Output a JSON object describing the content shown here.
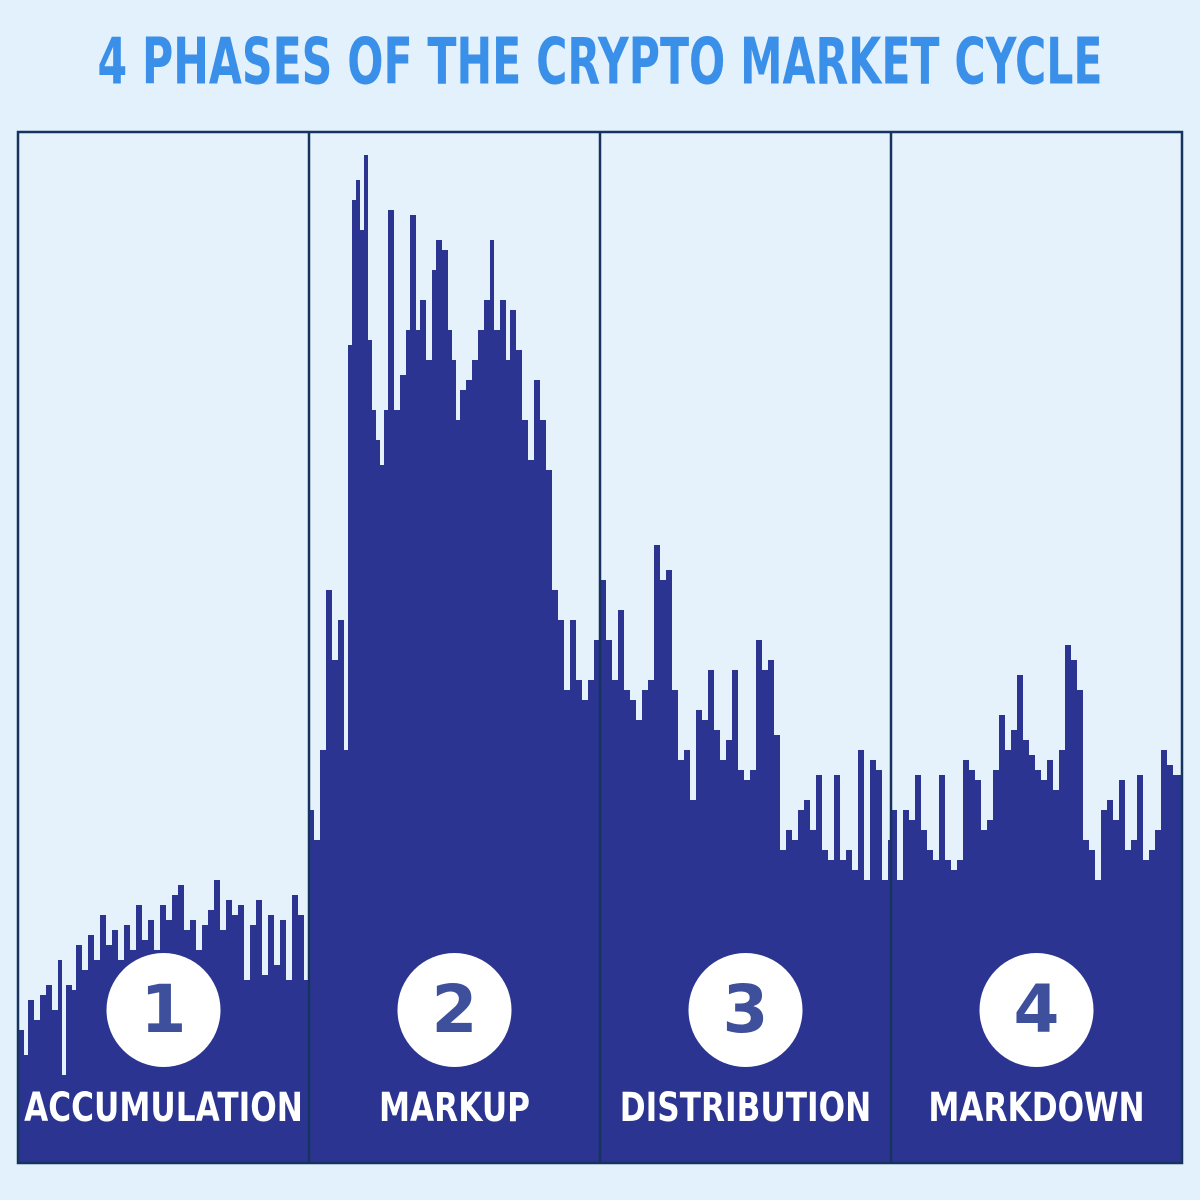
{
  "title": "4 PHASES OF THE CRYPTO MARKET CYCLE",
  "phases": [
    {
      "number": 1,
      "name": "ACCUMULATION"
    },
    {
      "number": 2,
      "name": "MARKUP"
    },
    {
      "number": 3,
      "name": "DISTRIBUTION"
    },
    {
      "number": 4,
      "name": "MARKDOWN"
    }
  ]
}
